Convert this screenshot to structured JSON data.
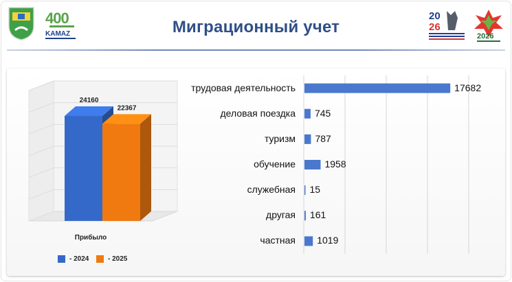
{
  "title": "Миграционный учет",
  "logos": {
    "left_anniversary_text": "400",
    "left_brand": "KAMAZ",
    "right_year_text": "2026",
    "right_year_split": [
      "20",
      "26"
    ]
  },
  "colors": {
    "series_2024": "#3569c9",
    "series_2025": "#f07a10",
    "bar_right": "#4a78cf",
    "title": "#2f4f86"
  },
  "chart_data": [
    {
      "type": "bar",
      "style": "3d-column",
      "categories": [
        "Прибыло"
      ],
      "series": [
        {
          "name": "- 2024",
          "values": [
            24160
          ],
          "color": "#3569c9"
        },
        {
          "name": "- 2025",
          "values": [
            22367
          ],
          "color": "#f07a10"
        }
      ],
      "value_labels": [
        "24160",
        "22367"
      ],
      "ylim": [
        0,
        30000
      ],
      "grid": true,
      "legend": "bottom-left"
    },
    {
      "type": "bar",
      "orientation": "horizontal",
      "categories": [
        "трудовая деятельность",
        "деловая поездка",
        "туризм",
        "обучение",
        "служебная",
        "другая",
        "частная"
      ],
      "values": [
        17682,
        745,
        787,
        1958,
        15,
        161,
        1019
      ],
      "value_labels": [
        "17682",
        "745",
        "787",
        "1958",
        "15",
        "161",
        "1019"
      ],
      "xlim": [
        0,
        20000
      ],
      "grid": true
    }
  ]
}
